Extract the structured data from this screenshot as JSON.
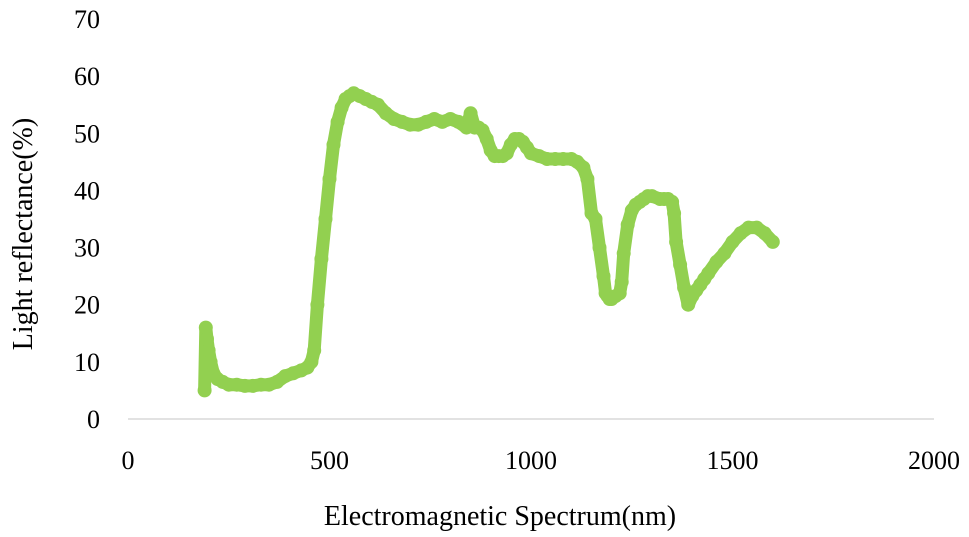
{
  "chart_data": {
    "type": "line",
    "title": "",
    "xlabel": "Electromagnetic Spectrum(nm)",
    "ylabel": "Light reflectance(%)",
    "xlim": [
      0,
      2000
    ],
    "ylim": [
      0,
      70
    ],
    "x_ticks": [
      0,
      500,
      1000,
      1500,
      2000
    ],
    "y_ticks": [
      0,
      10,
      20,
      30,
      40,
      50,
      60,
      70
    ],
    "grid": false,
    "legend": "none",
    "series": [
      {
        "color": "#92d050",
        "x": [
          190,
          193,
          196,
          200,
          205,
          212,
          222,
          235,
          250,
          270,
          290,
          310,
          330,
          350,
          370,
          390,
          410,
          430,
          445,
          455,
          462,
          470,
          480,
          490,
          500,
          510,
          520,
          530,
          540,
          550,
          560,
          575,
          590,
          605,
          620,
          640,
          660,
          680,
          700,
          720,
          740,
          760,
          780,
          800,
          820,
          840,
          850,
          860,
          870,
          880,
          890,
          900,
          910,
          920,
          930,
          940,
          950,
          960,
          970,
          980,
          990,
          1000,
          1020,
          1040,
          1060,
          1080,
          1100,
          1115,
          1130,
          1140,
          1150,
          1160,
          1170,
          1180,
          1185,
          1190,
          1195,
          1200,
          1210,
          1220,
          1225,
          1230,
          1240,
          1250,
          1260,
          1270,
          1280,
          1290,
          1300,
          1320,
          1330,
          1340,
          1350,
          1355,
          1360,
          1370,
          1380,
          1390,
          1400,
          1410,
          1420,
          1430,
          1440,
          1460,
          1480,
          1500,
          1520,
          1540,
          1560,
          1580,
          1600
        ],
        "values": [
          5,
          16,
          14,
          12,
          10,
          8,
          7,
          6.5,
          6,
          6,
          5.8,
          5.8,
          6,
          6,
          6.5,
          7.5,
          8,
          8.5,
          9,
          10,
          12,
          20,
          28,
          35,
          42,
          48,
          52,
          54.5,
          56,
          56.5,
          57,
          56.5,
          56,
          55.5,
          55,
          53.5,
          52.5,
          52,
          51.5,
          51.5,
          52,
          52.5,
          52,
          52.5,
          52,
          51,
          53.5,
          51,
          51,
          50.5,
          49,
          47,
          46,
          46,
          46,
          46.5,
          48,
          49,
          49,
          48.5,
          47.5,
          46.5,
          46,
          45.5,
          45.5,
          45.5,
          45.5,
          45,
          44,
          42,
          36,
          35,
          30,
          25,
          22,
          21.5,
          21,
          21,
          21.5,
          22,
          24,
          29,
          34,
          36.5,
          37.5,
          38,
          38.5,
          39,
          39,
          38.5,
          38.5,
          38.5,
          38,
          36,
          31,
          27,
          23,
          20,
          21.5,
          22.5,
          23.5,
          24.5,
          25.5,
          27.5,
          29,
          31,
          32.5,
          33.5,
          33.5,
          32.5,
          31
        ]
      }
    ]
  }
}
